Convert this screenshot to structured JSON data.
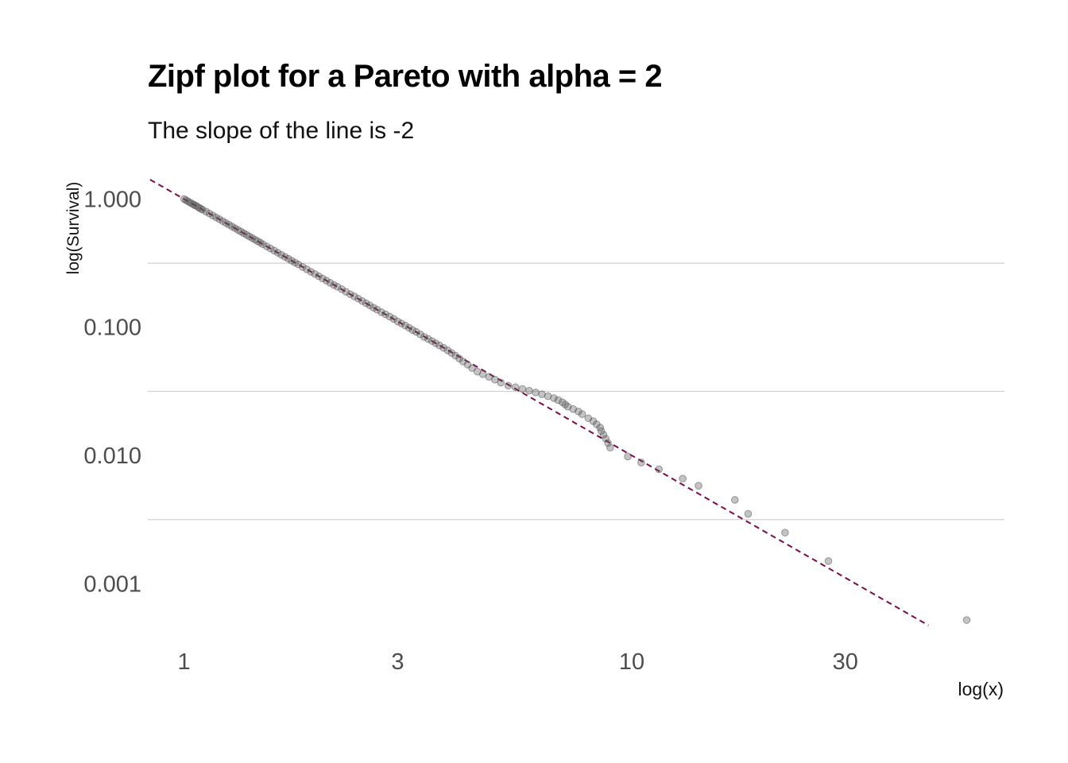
{
  "chart_data": {
    "type": "scatter",
    "title": "Zipf plot for a Pareto with alpha = 2",
    "subtitle": "The slope of the line is -2",
    "xlabel": "log(x)",
    "ylabel": "log(Survival)",
    "x_scale": "log10",
    "y_scale": "log10",
    "xlim": [
      0.83,
      68
    ],
    "ylim": [
      0.00033,
      1.5
    ],
    "x_ticks": [
      {
        "value": 1,
        "label": "1"
      },
      {
        "value": 3,
        "label": "3"
      },
      {
        "value": 10,
        "label": "10"
      },
      {
        "value": 30,
        "label": "30"
      }
    ],
    "y_ticks": [
      {
        "value": 0.001,
        "label": "0.001"
      },
      {
        "value": 0.01,
        "label": "0.010"
      },
      {
        "value": 0.1,
        "label": "0.100"
      },
      {
        "value": 1,
        "label": "1.000"
      }
    ],
    "y_minor_grid": [
      0.00316,
      0.0316,
      0.316
    ],
    "grid": "minor-horizontal-only",
    "legend": "none",
    "reference_line": {
      "style": "dashed",
      "color": "#7a0a4a",
      "slope": -2,
      "intercept": 1,
      "x_range": [
        0.84,
        46
      ]
    },
    "point_color": "#555555",
    "series": [
      {
        "points": [
          [
            1.0,
            1.0
          ],
          [
            1.01,
            0.98
          ],
          [
            1.02,
            0.96
          ],
          [
            1.03,
            0.94
          ],
          [
            1.04,
            0.925
          ],
          [
            1.05,
            0.905
          ],
          [
            1.06,
            0.89
          ],
          [
            1.07,
            0.875
          ],
          [
            1.08,
            0.855
          ],
          [
            1.09,
            0.84
          ],
          [
            1.1,
            0.825
          ],
          [
            1.12,
            0.797
          ],
          [
            1.14,
            0.77
          ],
          [
            1.16,
            0.743
          ],
          [
            1.18,
            0.718
          ],
          [
            1.2,
            0.695
          ],
          [
            1.22,
            0.672
          ],
          [
            1.24,
            0.65
          ],
          [
            1.26,
            0.63
          ],
          [
            1.28,
            0.61
          ],
          [
            1.3,
            0.592
          ],
          [
            1.32,
            0.574
          ],
          [
            1.34,
            0.557
          ],
          [
            1.36,
            0.541
          ],
          [
            1.38,
            0.525
          ],
          [
            1.4,
            0.51
          ],
          [
            1.42,
            0.496
          ],
          [
            1.44,
            0.482
          ],
          [
            1.46,
            0.469
          ],
          [
            1.48,
            0.457
          ],
          [
            1.5,
            0.444
          ],
          [
            1.53,
            0.427
          ],
          [
            1.56,
            0.411
          ],
          [
            1.59,
            0.396
          ],
          [
            1.62,
            0.381
          ],
          [
            1.65,
            0.367
          ],
          [
            1.68,
            0.354
          ],
          [
            1.71,
            0.342
          ],
          [
            1.74,
            0.33
          ],
          [
            1.77,
            0.319
          ],
          [
            1.8,
            0.309
          ],
          [
            1.84,
            0.295
          ],
          [
            1.88,
            0.283
          ],
          [
            1.92,
            0.271
          ],
          [
            1.96,
            0.26
          ],
          [
            2.0,
            0.25
          ],
          [
            2.04,
            0.24
          ],
          [
            2.08,
            0.231
          ],
          [
            2.12,
            0.222
          ],
          [
            2.16,
            0.214
          ],
          [
            2.2,
            0.207
          ],
          [
            2.25,
            0.198
          ],
          [
            2.3,
            0.189
          ],
          [
            2.35,
            0.181
          ],
          [
            2.4,
            0.174
          ],
          [
            2.45,
            0.167
          ],
          [
            2.5,
            0.16
          ],
          [
            2.55,
            0.154
          ],
          [
            2.6,
            0.148
          ],
          [
            2.65,
            0.142
          ],
          [
            2.7,
            0.137
          ],
          [
            2.76,
            0.131
          ],
          [
            2.82,
            0.126
          ],
          [
            2.88,
            0.121
          ],
          [
            2.94,
            0.116
          ],
          [
            3.0,
            0.111
          ],
          [
            3.06,
            0.107
          ],
          [
            3.12,
            0.103
          ],
          [
            3.18,
            0.099
          ],
          [
            3.24,
            0.095
          ],
          [
            3.3,
            0.092
          ],
          [
            3.37,
            0.088
          ],
          [
            3.44,
            0.084
          ],
          [
            3.51,
            0.081
          ],
          [
            3.58,
            0.078
          ],
          [
            3.65,
            0.075
          ],
          [
            3.72,
            0.072
          ],
          [
            3.8,
            0.069
          ],
          [
            3.88,
            0.066
          ],
          [
            3.96,
            0.063
          ],
          [
            4.04,
            0.06
          ],
          [
            4.12,
            0.057
          ],
          [
            4.2,
            0.054
          ],
          [
            4.3,
            0.051
          ],
          [
            4.4,
            0.048
          ],
          [
            4.52,
            0.045
          ],
          [
            4.65,
            0.043
          ],
          [
            4.8,
            0.041
          ],
          [
            4.95,
            0.039
          ],
          [
            5.1,
            0.037
          ],
          [
            5.3,
            0.035
          ],
          [
            5.5,
            0.034
          ],
          [
            5.7,
            0.033
          ],
          [
            5.9,
            0.032
          ],
          [
            6.1,
            0.031
          ],
          [
            6.3,
            0.03
          ],
          [
            6.5,
            0.029
          ],
          [
            6.7,
            0.028
          ],
          [
            6.85,
            0.027
          ],
          [
            7.0,
            0.026
          ],
          [
            7.1,
            0.025
          ],
          [
            7.2,
            0.024
          ],
          [
            7.4,
            0.023
          ],
          [
            7.6,
            0.022
          ],
          [
            7.75,
            0.021
          ],
          [
            8.0,
            0.0195
          ],
          [
            8.2,
            0.0185
          ],
          [
            8.35,
            0.0175
          ],
          [
            8.5,
            0.0165
          ],
          [
            8.55,
            0.0155
          ],
          [
            8.65,
            0.0145
          ],
          [
            8.75,
            0.0135
          ],
          [
            8.85,
            0.0125
          ],
          [
            8.95,
            0.0115
          ],
          [
            9.8,
            0.0098
          ],
          [
            10.5,
            0.0088
          ],
          [
            11.5,
            0.0078
          ],
          [
            13.0,
            0.0066
          ],
          [
            14.1,
            0.0058
          ],
          [
            17.0,
            0.0045
          ],
          [
            18.2,
            0.0035
          ],
          [
            22.0,
            0.0025
          ],
          [
            27.5,
            0.0015
          ],
          [
            56.0,
            0.00052
          ]
        ]
      }
    ]
  }
}
